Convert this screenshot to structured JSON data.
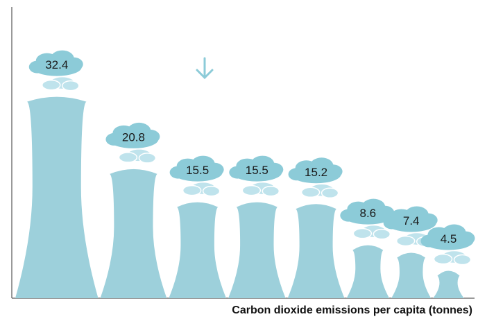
{
  "chart_data": {
    "type": "tower",
    "x_label": "Carbon dioxide emissions per capita (tonnes)",
    "values": [
      32.4,
      20.8,
      15.5,
      15.5,
      15.2,
      8.6,
      7.4,
      4.5
    ],
    "color": "#9dd0db",
    "ylim": [
      0,
      46.7
    ]
  }
}
